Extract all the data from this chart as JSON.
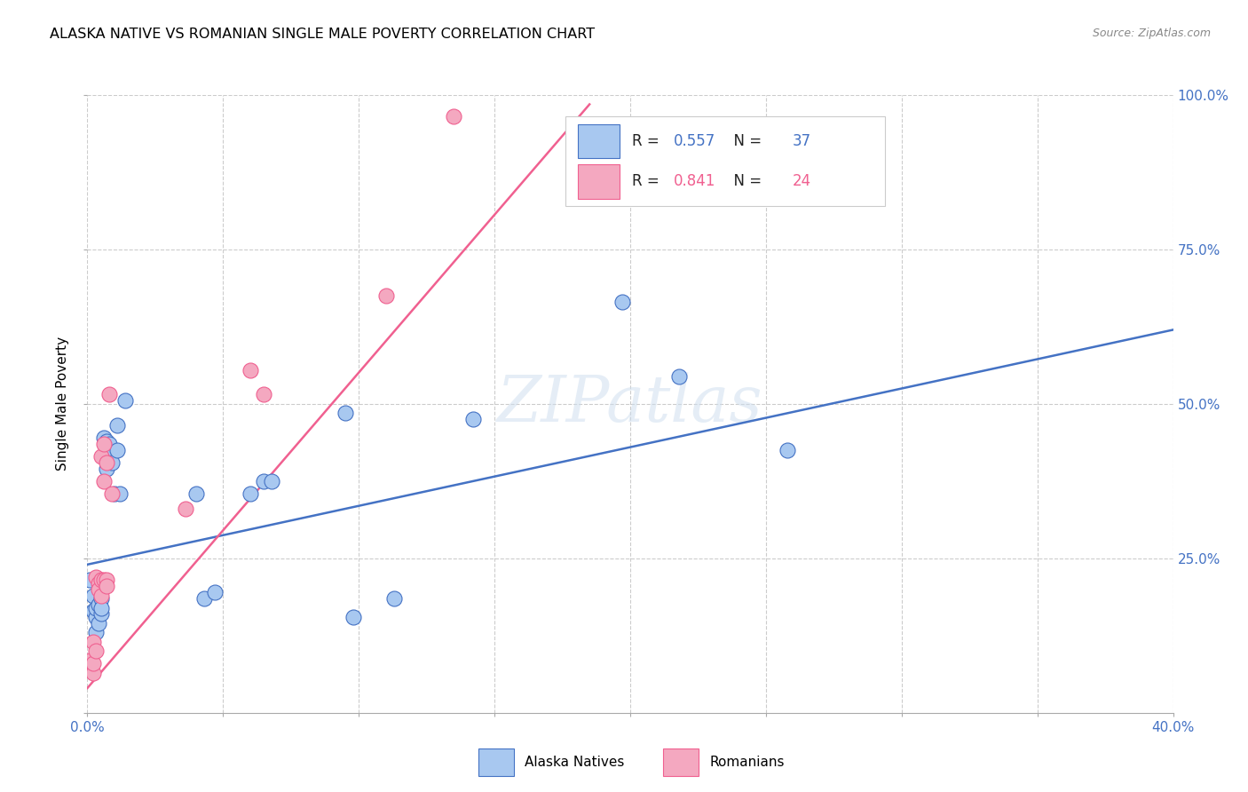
{
  "title": "ALASKA NATIVE VS ROMANIAN SINGLE MALE POVERTY CORRELATION CHART",
  "source": "Source: ZipAtlas.com",
  "ylabel": "Single Male Poverty",
  "xlim": [
    0.0,
    0.4
  ],
  "ylim": [
    0.0,
    1.0
  ],
  "alaska_R": 0.557,
  "alaska_N": 37,
  "romanian_R": 0.841,
  "romanian_N": 24,
  "alaska_color": "#A8C8F0",
  "romanian_color": "#F4A8C0",
  "alaska_line_color": "#4472C4",
  "romanian_line_color": "#F06090",
  "background_color": "#FFFFFF",
  "grid_color": "#CCCCCC",
  "alaska_scatter": [
    [
      0.001,
      0.215
    ],
    [
      0.002,
      0.19
    ],
    [
      0.002,
      0.165
    ],
    [
      0.003,
      0.155
    ],
    [
      0.003,
      0.17
    ],
    [
      0.003,
      0.13
    ],
    [
      0.004,
      0.145
    ],
    [
      0.004,
      0.175
    ],
    [
      0.004,
      0.215
    ],
    [
      0.005,
      0.16
    ],
    [
      0.005,
      0.185
    ],
    [
      0.005,
      0.17
    ],
    [
      0.006,
      0.445
    ],
    [
      0.006,
      0.415
    ],
    [
      0.007,
      0.44
    ],
    [
      0.007,
      0.395
    ],
    [
      0.008,
      0.435
    ],
    [
      0.008,
      0.415
    ],
    [
      0.009,
      0.405
    ],
    [
      0.01,
      0.355
    ],
    [
      0.011,
      0.465
    ],
    [
      0.011,
      0.425
    ],
    [
      0.012,
      0.355
    ],
    [
      0.014,
      0.505
    ],
    [
      0.04,
      0.355
    ],
    [
      0.043,
      0.185
    ],
    [
      0.047,
      0.195
    ],
    [
      0.06,
      0.355
    ],
    [
      0.065,
      0.375
    ],
    [
      0.068,
      0.375
    ],
    [
      0.095,
      0.485
    ],
    [
      0.098,
      0.155
    ],
    [
      0.113,
      0.185
    ],
    [
      0.142,
      0.475
    ],
    [
      0.197,
      0.665
    ],
    [
      0.218,
      0.545
    ],
    [
      0.258,
      0.425
    ]
  ],
  "romanian_scatter": [
    [
      0.001,
      0.085
    ],
    [
      0.002,
      0.065
    ],
    [
      0.002,
      0.08
    ],
    [
      0.002,
      0.115
    ],
    [
      0.003,
      0.1
    ],
    [
      0.003,
      0.22
    ],
    [
      0.004,
      0.21
    ],
    [
      0.004,
      0.2
    ],
    [
      0.005,
      0.215
    ],
    [
      0.005,
      0.19
    ],
    [
      0.005,
      0.415
    ],
    [
      0.006,
      0.375
    ],
    [
      0.006,
      0.435
    ],
    [
      0.006,
      0.215
    ],
    [
      0.007,
      0.215
    ],
    [
      0.007,
      0.205
    ],
    [
      0.007,
      0.405
    ],
    [
      0.008,
      0.515
    ],
    [
      0.009,
      0.355
    ],
    [
      0.036,
      0.33
    ],
    [
      0.06,
      0.555
    ],
    [
      0.065,
      0.515
    ],
    [
      0.11,
      0.675
    ],
    [
      0.135,
      0.965
    ]
  ],
  "alaska_line_x": [
    0.0,
    0.4
  ],
  "alaska_line_y": [
    0.24,
    0.62
  ],
  "romanian_line_x": [
    0.0,
    0.185
  ],
  "romanian_line_y": [
    0.04,
    0.985
  ]
}
